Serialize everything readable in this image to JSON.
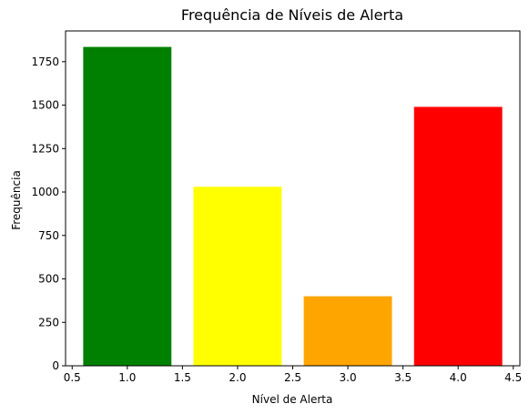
{
  "chart_data": {
    "type": "bar",
    "title": "Frequência de Níveis de Alerta",
    "xlabel": "Nível de Alerta",
    "ylabel": "Frequência",
    "x": [
      1.0,
      2.0,
      3.0,
      4.0
    ],
    "values": [
      1835,
      1030,
      400,
      1490
    ],
    "bar_width": 0.8,
    "colors": [
      "#008000",
      "#ffff00",
      "#ffa500",
      "#ff0000"
    ],
    "xlim": [
      0.44,
      4.56
    ],
    "ylim": [
      0,
      1927
    ],
    "xticks": [
      0.5,
      1.0,
      1.5,
      2.0,
      2.5,
      3.0,
      3.5,
      4.0,
      4.5
    ],
    "xtick_labels": [
      "0.5",
      "1.0",
      "1.5",
      "2.0",
      "2.5",
      "3.0",
      "3.5",
      "4.0",
      "4.5"
    ],
    "yticks": [
      0,
      250,
      500,
      750,
      1000,
      1250,
      1500,
      1750
    ],
    "ytick_labels": [
      "0",
      "250",
      "500",
      "750",
      "1000",
      "1250",
      "1500",
      "1750"
    ],
    "grid": false,
    "legend": false
  }
}
